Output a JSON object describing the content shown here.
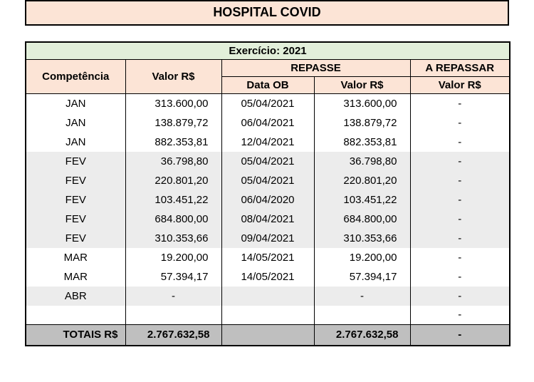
{
  "title": "HOSPITAL COVID",
  "exercicio": "Exercício: 2021",
  "colors": {
    "peach": "#fce4d6",
    "green": "#e2efda",
    "shade": "#ececec",
    "totals": "#bfbfbf"
  },
  "headers": {
    "competencia": "Competência",
    "valor": "Valor R$",
    "repasse": "REPASSE",
    "data_ob": "Data OB",
    "repasse_valor": "Valor R$",
    "a_repassar": "A REPASSAR",
    "a_repassar_valor": "Valor R$"
  },
  "rows": [
    {
      "comp": "JAN",
      "valor": "313.600,00",
      "data_ob": "05/04/2021",
      "rep_valor": "313.600,00",
      "a_rep": "-",
      "shade": false
    },
    {
      "comp": "JAN",
      "valor": "138.879,72",
      "data_ob": "06/04/2021",
      "rep_valor": "138.879,72",
      "a_rep": "-",
      "shade": false
    },
    {
      "comp": "JAN",
      "valor": "882.353,81",
      "data_ob": "12/04/2021",
      "rep_valor": "882.353,81",
      "a_rep": "-",
      "shade": false
    },
    {
      "comp": "FEV",
      "valor": "36.798,80",
      "data_ob": "05/04/2021",
      "rep_valor": "36.798,80",
      "a_rep": "-",
      "shade": true
    },
    {
      "comp": "FEV",
      "valor": "220.801,20",
      "data_ob": "05/04/2021",
      "rep_valor": "220.801,20",
      "a_rep": "-",
      "shade": true
    },
    {
      "comp": "FEV",
      "valor": "103.451,22",
      "data_ob": "06/04/2020",
      "rep_valor": "103.451,22",
      "a_rep": "-",
      "shade": true
    },
    {
      "comp": "FEV",
      "valor": "684.800,00",
      "data_ob": "08/04/2021",
      "rep_valor": "684.800,00",
      "a_rep": "-",
      "shade": true
    },
    {
      "comp": "FEV",
      "valor": "310.353,66",
      "data_ob": "09/04/2021",
      "rep_valor": "310.353,66",
      "a_rep": "-",
      "shade": true
    },
    {
      "comp": "MAR",
      "valor": "19.200,00",
      "data_ob": "14/05/2021",
      "rep_valor": "19.200,00",
      "a_rep": "-",
      "shade": false
    },
    {
      "comp": "MAR",
      "valor": "57.394,17",
      "data_ob": "14/05/2021",
      "rep_valor": "57.394,17",
      "a_rep": "-",
      "shade": false
    },
    {
      "comp": "ABR",
      "valor": "-",
      "data_ob": "",
      "rep_valor": "-",
      "a_rep": "-",
      "shade": true
    },
    {
      "comp": "",
      "valor": "",
      "data_ob": "",
      "rep_valor": "",
      "a_rep": "-",
      "shade": false
    }
  ],
  "totals": {
    "label": "TOTAIS R$",
    "valor": "2.767.632,58",
    "data_ob": "",
    "rep_valor": "2.767.632,58",
    "a_rep": "-"
  }
}
